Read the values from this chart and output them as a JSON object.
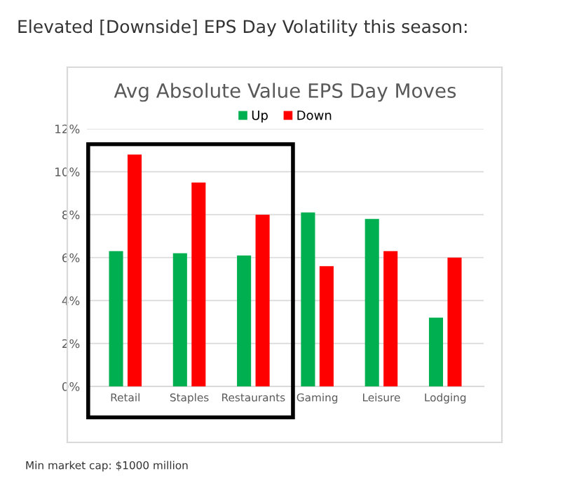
{
  "chart_data": {
    "type": "bar",
    "title": "Avg Absolute Value EPS Day Moves",
    "annotations": [
      "Elevated [Downside] EPS Day Volatility this season:",
      "Min market cap: $1000 million"
    ],
    "categories": [
      "Retail",
      "Staples",
      "Restaurants",
      "Gaming",
      "Leisure",
      "Lodging"
    ],
    "series": [
      {
        "name": "Up",
        "color": "#00b050",
        "values": [
          6.3,
          6.2,
          6.1,
          8.1,
          7.8,
          3.2
        ]
      },
      {
        "name": "Down",
        "color": "#ff0000",
        "values": [
          10.8,
          9.5,
          8.0,
          5.6,
          6.3,
          6.0
        ]
      }
    ],
    "ylim": [
      0,
      12
    ],
    "yticks": [
      {
        "value": 0,
        "label": "0%"
      },
      {
        "value": 2,
        "label": "2%"
      },
      {
        "value": 4,
        "label": "4%"
      },
      {
        "value": 6,
        "label": "6%"
      },
      {
        "value": 8,
        "label": "8%"
      },
      {
        "value": 10,
        "label": "10%"
      },
      {
        "value": 12,
        "label": "12%"
      }
    ],
    "grid": "y",
    "legend": "top"
  }
}
